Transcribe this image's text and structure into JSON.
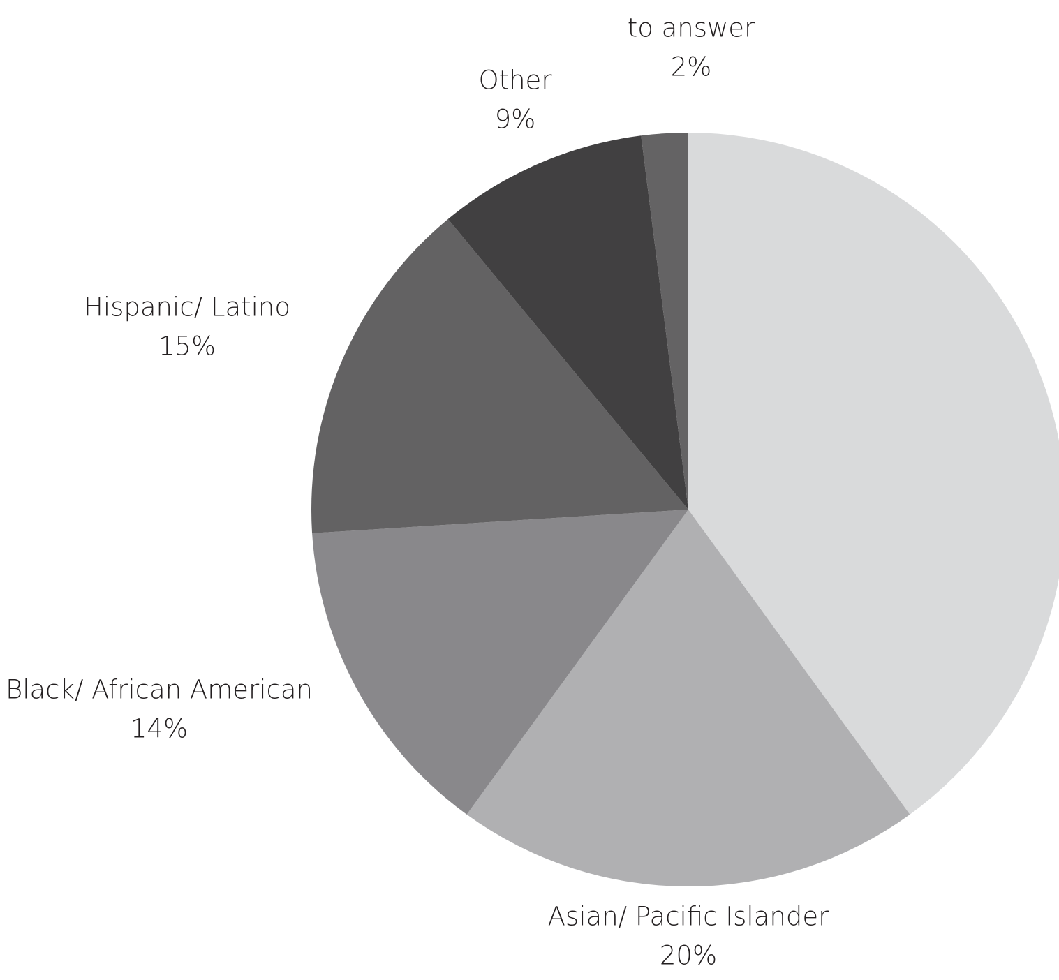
{
  "chart_data": {
    "type": "pie",
    "slices": [
      {
        "label": "",
        "value_label": "",
        "value": 40,
        "color": "#d9dadb"
      },
      {
        "label": "Asian/ Pacific Islander",
        "value_label": "20%",
        "value": 20,
        "color": "#b0b0b2"
      },
      {
        "label": "Black/ African American",
        "value_label": "14%",
        "value": 14,
        "color": "#89888b"
      },
      {
        "label": "Hispanic/ Latino",
        "value_label": "15%",
        "value": 15,
        "color": "#636263"
      },
      {
        "label": "Other",
        "value_label": "9%",
        "value": 9,
        "color": "#414041"
      },
      {
        "label": "Prefer not\nto answer",
        "value_label": "2%",
        "value": 2,
        "color": "#646364"
      }
    ],
    "start": "12 o'clock",
    "direction": "clockwise",
    "legend": "none"
  }
}
